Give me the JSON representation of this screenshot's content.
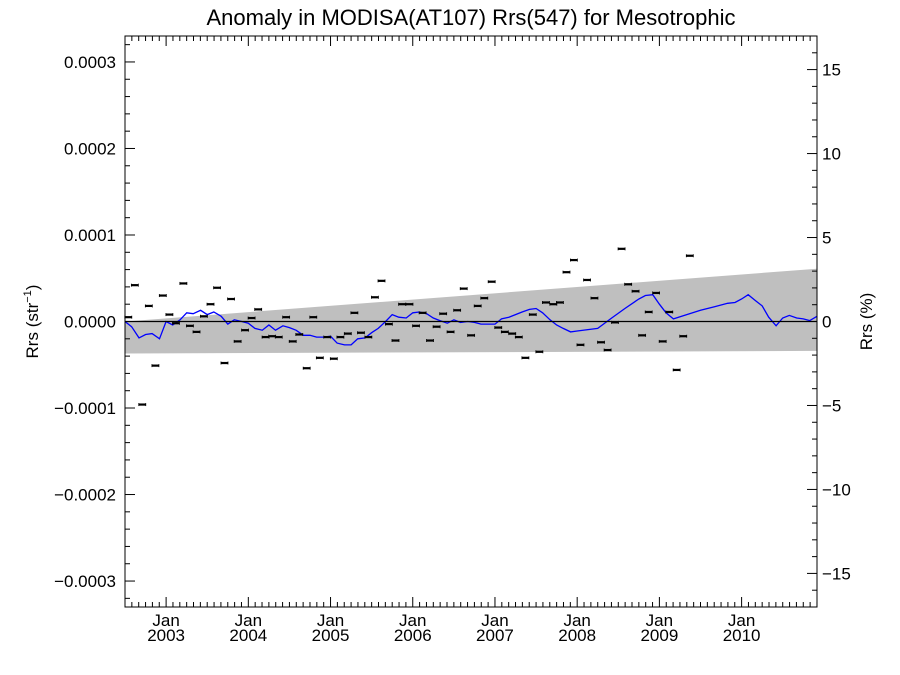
{
  "chart_data": {
    "type": "scatter",
    "title": "Anomaly in MODISA(AT107) Rrs(547) for Mesotrophic",
    "ylabel_left": {
      "base": "Rrs (str",
      "sup": "−1",
      "end": ")"
    },
    "ylabel_right": "Rrs (%)",
    "xlim": [
      2002.5,
      2010.917
    ],
    "ylim": [
      -0.00033,
      0.00033
    ],
    "ylim_right": [
      -17,
      17
    ],
    "x_ticks": [
      {
        "x": 2003.0,
        "month": "Jan",
        "year": "2003"
      },
      {
        "x": 2004.0,
        "month": "Jan",
        "year": "2004"
      },
      {
        "x": 2005.0,
        "month": "Jan",
        "year": "2005"
      },
      {
        "x": 2006.0,
        "month": "Jan",
        "year": "2006"
      },
      {
        "x": 2007.0,
        "month": "Jan",
        "year": "2007"
      },
      {
        "x": 2008.0,
        "month": "Jan",
        "year": "2008"
      },
      {
        "x": 2009.0,
        "month": "Jan",
        "year": "2009"
      },
      {
        "x": 2010.0,
        "month": "Jan",
        "year": "2010"
      }
    ],
    "y_ticks_left": [
      {
        "v": 0.0003,
        "label": "0.0003"
      },
      {
        "v": 0.0002,
        "label": "0.0002"
      },
      {
        "v": 0.0001,
        "label": "0.0001"
      },
      {
        "v": 0.0,
        "label": "0.0000"
      },
      {
        "v": -0.0001,
        "label": "−0.0001"
      },
      {
        "v": -0.0002,
        "label": "−0.0002"
      },
      {
        "v": -0.0003,
        "label": "−0.0003"
      }
    ],
    "y_ticks_right": [
      {
        "v": 15,
        "label": "15"
      },
      {
        "v": 10,
        "label": "10"
      },
      {
        "v": 5,
        "label": "5"
      },
      {
        "v": 0,
        "label": "0"
      },
      {
        "v": -5,
        "label": "−5"
      },
      {
        "v": -10,
        "label": "−10"
      },
      {
        "v": -15,
        "label": "−15"
      }
    ],
    "confidence_band": {
      "x": [
        2002.5,
        2010.917
      ],
      "upper": [
        0.0,
        6.1e-05
      ],
      "lower": [
        -3.7e-05,
        -3.4e-05
      ],
      "color": "#bfbfbf"
    },
    "zero_line_color": "#000000",
    "trend_line": {
      "color": "#0000ff",
      "points": [
        [
          2002.5,
          0.0
        ],
        [
          2002.58,
          -6e-06
        ],
        [
          2002.67,
          -1.9e-05
        ],
        [
          2002.75,
          -1.5e-05
        ],
        [
          2002.83,
          -1.4e-05
        ],
        [
          2002.92,
          -2e-05
        ],
        [
          2003.0,
          0.0
        ],
        [
          2003.08,
          -4e-06
        ],
        [
          2003.17,
          2e-06
        ],
        [
          2003.25,
          1e-05
        ],
        [
          2003.33,
          9e-06
        ],
        [
          2003.42,
          1.3e-05
        ],
        [
          2003.5,
          8e-06
        ],
        [
          2003.58,
          1.1e-05
        ],
        [
          2003.67,
          6e-06
        ],
        [
          2003.75,
          -3e-06
        ],
        [
          2003.83,
          2e-06
        ],
        [
          2003.92,
          0.0
        ],
        [
          2004.0,
          -2e-06
        ],
        [
          2004.08,
          -8e-06
        ],
        [
          2004.17,
          -1e-05
        ],
        [
          2004.25,
          -4e-06
        ],
        [
          2004.33,
          -1e-05
        ],
        [
          2004.42,
          -5e-06
        ],
        [
          2004.5,
          -7e-06
        ],
        [
          2004.58,
          -1e-05
        ],
        [
          2004.67,
          -1.6e-05
        ],
        [
          2004.75,
          -1.6e-05
        ],
        [
          2004.83,
          -1.8e-05
        ],
        [
          2004.92,
          -1.8e-05
        ],
        [
          2005.0,
          -1.7e-05
        ],
        [
          2005.08,
          -2.5e-05
        ],
        [
          2005.17,
          -2.7e-05
        ],
        [
          2005.25,
          -2.7e-05
        ],
        [
          2005.33,
          -2e-05
        ],
        [
          2005.42,
          -1.9e-05
        ],
        [
          2005.5,
          -1.3e-05
        ],
        [
          2005.58,
          -8e-06
        ],
        [
          2005.67,
          0.0
        ],
        [
          2005.75,
          8e-06
        ],
        [
          2005.83,
          5e-06
        ],
        [
          2005.92,
          4e-06
        ],
        [
          2006.0,
          1e-05
        ],
        [
          2006.08,
          1.1e-05
        ],
        [
          2006.17,
          9e-06
        ],
        [
          2006.25,
          4e-06
        ],
        [
          2006.33,
          1e-06
        ],
        [
          2006.42,
          -2e-06
        ],
        [
          2006.5,
          2e-06
        ],
        [
          2006.58,
          -1e-06
        ],
        [
          2006.67,
          0.0
        ],
        [
          2006.75,
          -1e-06
        ],
        [
          2006.83,
          -3e-06
        ],
        [
          2006.92,
          -3e-06
        ],
        [
          2007.0,
          -3e-06
        ],
        [
          2007.08,
          3e-06
        ],
        [
          2007.17,
          5e-06
        ],
        [
          2007.25,
          8e-06
        ],
        [
          2007.33,
          1.1e-05
        ],
        [
          2007.42,
          1.4e-05
        ],
        [
          2007.5,
          1.5e-05
        ],
        [
          2007.58,
          1e-05
        ],
        [
          2007.67,
          2e-06
        ],
        [
          2007.75,
          -4e-06
        ],
        [
          2007.83,
          -8e-06
        ],
        [
          2007.92,
          -1.2e-05
        ],
        [
          2008.0,
          -1.1e-05
        ],
        [
          2008.25,
          -8e-06
        ],
        [
          2008.42,
          4e-06
        ],
        [
          2008.58,
          1.5e-05
        ],
        [
          2008.75,
          2.6e-05
        ],
        [
          2008.83,
          3e-05
        ],
        [
          2008.92,
          3.1e-05
        ],
        [
          2009.0,
          2e-05
        ],
        [
          2009.08,
          1e-05
        ],
        [
          2009.17,
          3e-06
        ],
        [
          2009.5,
          1.3e-05
        ],
        [
          2009.67,
          1.7e-05
        ],
        [
          2009.83,
          2.1e-05
        ],
        [
          2009.92,
          2.2e-05
        ],
        [
          2010.0,
          2.6e-05
        ],
        [
          2010.08,
          3.1e-05
        ],
        [
          2010.17,
          2.4e-05
        ],
        [
          2010.25,
          1.8e-05
        ],
        [
          2010.33,
          5e-06
        ],
        [
          2010.42,
          -5e-06
        ],
        [
          2010.5,
          4e-06
        ],
        [
          2010.58,
          7e-06
        ],
        [
          2010.67,
          4e-06
        ],
        [
          2010.75,
          3e-06
        ],
        [
          2010.83,
          1e-06
        ],
        [
          2010.917,
          6e-06
        ]
      ]
    },
    "monthly_points": [
      [
        2002.54,
        5e-06
      ],
      [
        2002.62,
        4.2e-05
      ],
      [
        2002.71,
        -9.6e-05
      ],
      [
        2002.79,
        1.8e-05
      ],
      [
        2002.87,
        -5.1e-05
      ],
      [
        2002.96,
        3e-05
      ],
      [
        2003.04,
        8e-06
      ],
      [
        2003.12,
        -2e-06
      ],
      [
        2003.21,
        4.4e-05
      ],
      [
        2003.29,
        -5e-06
      ],
      [
        2003.37,
        -1.2e-05
      ],
      [
        2003.46,
        6e-06
      ],
      [
        2003.54,
        2e-05
      ],
      [
        2003.62,
        3.9e-05
      ],
      [
        2003.71,
        -4.8e-05
      ],
      [
        2003.79,
        2.6e-05
      ],
      [
        2003.87,
        -2.3e-05
      ],
      [
        2003.96,
        -1e-05
      ],
      [
        2004.04,
        4e-06
      ],
      [
        2004.12,
        1.4e-05
      ],
      [
        2004.21,
        -1.8e-05
      ],
      [
        2004.29,
        -1.7e-05
      ],
      [
        2004.37,
        -1.8e-05
      ],
      [
        2004.46,
        5e-06
      ],
      [
        2004.54,
        -2.3e-05
      ],
      [
        2004.62,
        -1.5e-05
      ],
      [
        2004.71,
        -5.4e-05
      ],
      [
        2004.79,
        5e-06
      ],
      [
        2004.87,
        -4.2e-05
      ],
      [
        2004.96,
        -1.8e-05
      ],
      [
        2005.04,
        -4.3e-05
      ],
      [
        2005.12,
        -1.8e-05
      ],
      [
        2005.21,
        -1.4e-05
      ],
      [
        2005.29,
        1e-05
      ],
      [
        2005.37,
        -1.3e-05
      ],
      [
        2005.46,
        -1.8e-05
      ],
      [
        2005.54,
        2.8e-05
      ],
      [
        2005.62,
        4.7e-05
      ],
      [
        2005.71,
        -3e-06
      ],
      [
        2005.79,
        -2.2e-05
      ],
      [
        2005.87,
        2e-05
      ],
      [
        2005.96,
        2e-05
      ],
      [
        2006.04,
        -5e-06
      ],
      [
        2006.12,
        1e-05
      ],
      [
        2006.21,
        -2.2e-05
      ],
      [
        2006.29,
        -6e-06
      ],
      [
        2006.37,
        9e-06
      ],
      [
        2006.46,
        -1.2e-05
      ],
      [
        2006.54,
        1.3e-05
      ],
      [
        2006.62,
        3.8e-05
      ],
      [
        2006.71,
        -1.6e-05
      ],
      [
        2006.79,
        1.8e-05
      ],
      [
        2006.87,
        2.7e-05
      ],
      [
        2006.96,
        4.6e-05
      ],
      [
        2007.04,
        -7e-06
      ],
      [
        2007.12,
        -1.2e-05
      ],
      [
        2007.21,
        -1.4e-05
      ],
      [
        2007.29,
        -1.8e-05
      ],
      [
        2007.37,
        -4.2e-05
      ],
      [
        2007.46,
        8e-06
      ],
      [
        2007.54,
        -3.5e-05
      ],
      [
        2007.62,
        2.2e-05
      ],
      [
        2007.71,
        2e-05
      ],
      [
        2007.79,
        2.2e-05
      ],
      [
        2007.87,
        5.7e-05
      ],
      [
        2007.96,
        7.1e-05
      ],
      [
        2008.04,
        -2.7e-05
      ],
      [
        2008.12,
        4.8e-05
      ],
      [
        2008.21,
        2.7e-05
      ],
      [
        2008.29,
        -2.4e-05
      ],
      [
        2008.37,
        -3.3e-05
      ],
      [
        2008.46,
        -1e-06
      ],
      [
        2008.54,
        8.4e-05
      ],
      [
        2008.62,
        4.3e-05
      ],
      [
        2008.71,
        3.5e-05
      ],
      [
        2008.79,
        -1.6e-05
      ],
      [
        2008.87,
        1.1e-05
      ],
      [
        2008.96,
        3.3e-05
      ],
      [
        2009.04,
        -2.3e-05
      ],
      [
        2009.12,
        1.1e-05
      ],
      [
        2009.21,
        -5.6e-05
      ],
      [
        2009.29,
        -1.7e-05
      ],
      [
        2009.37,
        7.6e-05
      ]
    ],
    "monthly_points_x_offset": 0.0,
    "marker_color": "#000000"
  }
}
